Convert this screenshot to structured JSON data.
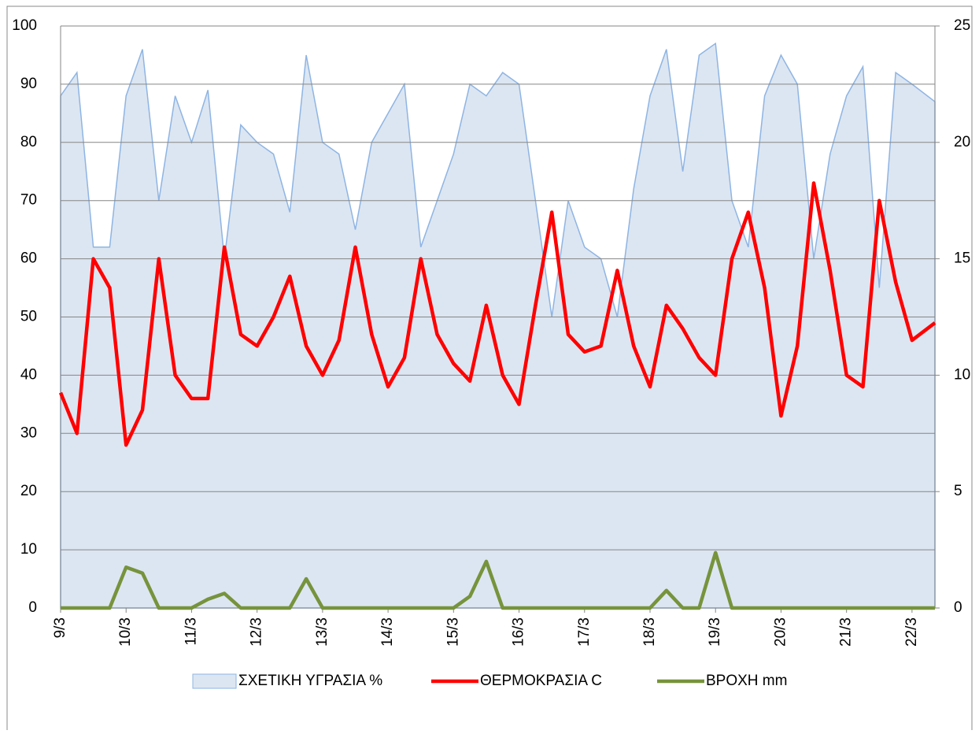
{
  "chart_data": {
    "type": "line",
    "x": [
      9,
      9.25,
      9.5,
      9.75,
      10,
      10.25,
      10.5,
      10.75,
      11,
      11.25,
      11.5,
      11.75,
      12,
      12.25,
      12.5,
      12.75,
      13,
      13.25,
      13.5,
      13.75,
      14,
      14.25,
      14.5,
      14.75,
      15,
      15.25,
      15.5,
      15.75,
      16,
      16.25,
      16.5,
      16.75,
      17,
      17.25,
      17.5,
      17.75,
      18,
      18.25,
      18.5,
      18.75,
      19,
      19.25,
      19.5,
      19.75,
      20,
      20.25,
      20.5,
      20.75,
      21,
      21.25,
      21.5,
      21.75,
      22,
      22.35
    ],
    "xlim": [
      9,
      22.35
    ],
    "xticks": [
      {
        "value": 9,
        "label": "9/3"
      },
      {
        "value": 10,
        "label": "10/3"
      },
      {
        "value": 11,
        "label": "11/3"
      },
      {
        "value": 12,
        "label": "12/3"
      },
      {
        "value": 13,
        "label": "13/3"
      },
      {
        "value": 14,
        "label": "14/3"
      },
      {
        "value": 15,
        "label": "15/3"
      },
      {
        "value": 16,
        "label": "16/3"
      },
      {
        "value": 17,
        "label": "17/3"
      },
      {
        "value": 18,
        "label": "18/3"
      },
      {
        "value": 19,
        "label": "19/3"
      },
      {
        "value": 20,
        "label": "20/3"
      },
      {
        "value": 21,
        "label": "21/3"
      },
      {
        "value": 22,
        "label": "22/3"
      }
    ],
    "ylim": [
      0,
      100
    ],
    "yticks": [
      0,
      10,
      20,
      30,
      40,
      50,
      60,
      70,
      80,
      90,
      100
    ],
    "y2lim": [
      0,
      25
    ],
    "y2ticks": [
      0,
      5,
      10,
      15,
      20,
      25
    ],
    "grid": true,
    "legend": "bottom",
    "series": [
      {
        "name": "ΣΧΕΤΙΚΗ ΥΓΡΑΣΙΑ %",
        "style": "area",
        "color": "#8eb4e3",
        "fill": "#dce6f2",
        "values": [
          88,
          92,
          62,
          62,
          88,
          96,
          70,
          88,
          80,
          89,
          60,
          83,
          80,
          78,
          68,
          95,
          80,
          78,
          65,
          80,
          85,
          90,
          62,
          70,
          78,
          90,
          88,
          92,
          90,
          70,
          50,
          70,
          62,
          60,
          50,
          72,
          88,
          96,
          75,
          95,
          97,
          70,
          62,
          88,
          95,
          90,
          60,
          78,
          88,
          93,
          55,
          92,
          90,
          87
        ]
      },
      {
        "name": "ΘΕΡΜΟΚΡΑΣΙΑ C",
        "style": "line",
        "color": "#ff0000",
        "axis": "y2",
        "values": [
          9.25,
          7.5,
          15,
          13.75,
          7,
          8.5,
          15,
          10,
          9,
          9,
          15.5,
          11.75,
          11.25,
          12.5,
          14.25,
          11.25,
          10,
          11.5,
          15.5,
          11.75,
          9.5,
          10.75,
          15,
          11.75,
          10.5,
          9.75,
          13,
          10,
          8.75,
          13,
          17,
          11.75,
          11,
          11.25,
          14.5,
          11.25,
          9.5,
          13,
          12,
          10.75,
          10,
          15,
          17,
          13.75,
          8.25,
          11.25,
          18.25,
          14.5,
          10,
          9.5,
          17.5,
          14,
          11.5,
          12.25
        ]
      },
      {
        "name": "ΒΡΟΧΗ mm",
        "style": "line",
        "color": "#77933c",
        "values": [
          0,
          0,
          0,
          0,
          7,
          6,
          0,
          0,
          0,
          1.5,
          2.5,
          0,
          0,
          0,
          0,
          5,
          0,
          0,
          0,
          0,
          0,
          0,
          0,
          0,
          0,
          2,
          8,
          0,
          0,
          0,
          0,
          0,
          0,
          0,
          0,
          0,
          0,
          3,
          0,
          0,
          9.5,
          0,
          0,
          0,
          0,
          0,
          0,
          0,
          0,
          0,
          0,
          0,
          0,
          0
        ]
      }
    ]
  }
}
